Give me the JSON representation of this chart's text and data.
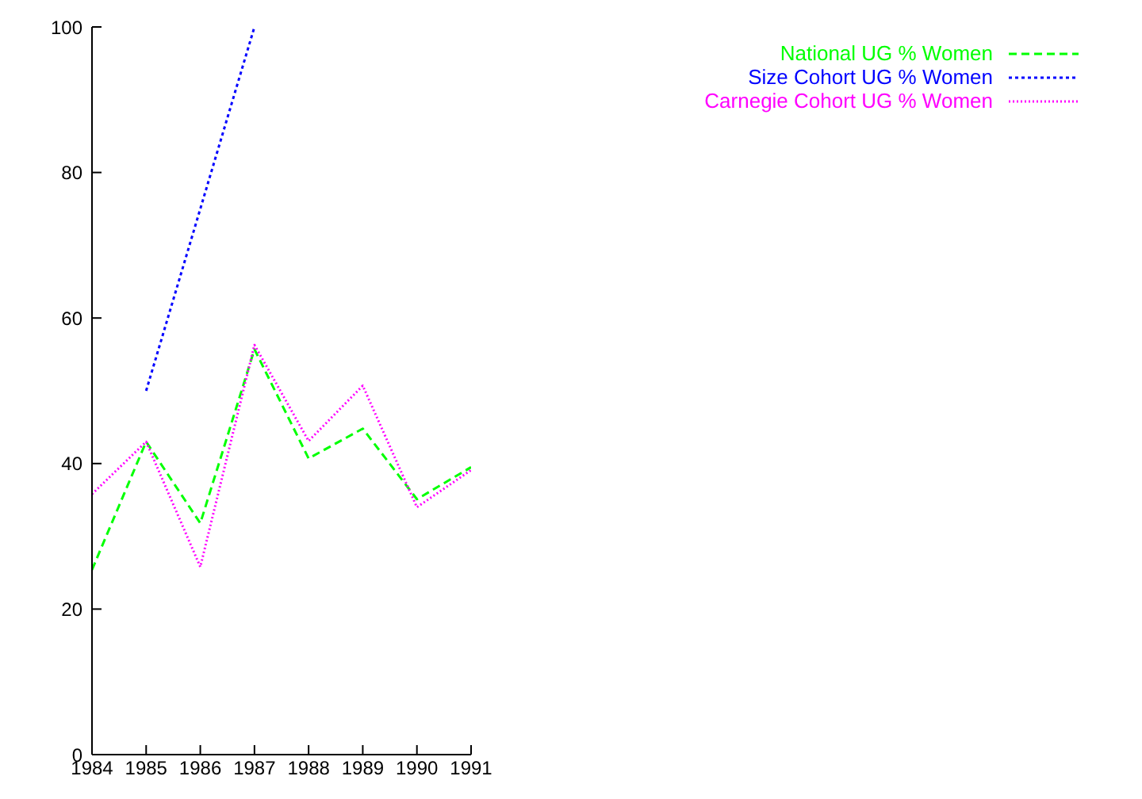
{
  "chart_data": {
    "type": "line",
    "x": [
      1984,
      1985,
      1986,
      1987,
      1988,
      1989,
      1990,
      1991
    ],
    "xlim": [
      1984,
      1991
    ],
    "xticks": [
      1984,
      1985,
      1986,
      1987,
      1988,
      1989,
      1990,
      1991
    ],
    "ylim": [
      0,
      100
    ],
    "yticks": [
      0,
      20,
      40,
      60,
      80,
      100
    ],
    "grid": false,
    "legend": "top right",
    "marker": "none",
    "series": [
      {
        "name": "National UG % Women",
        "color": "#00ff00",
        "line_style": "dashed",
        "values": [
          25.4,
          43.0,
          31.8,
          55.7,
          40.7,
          44.8,
          35.1,
          39.5
        ]
      },
      {
        "name": "Size Cohort UG % Women",
        "color": "#0000ff",
        "line_style": "dotted",
        "values": [
          null,
          50.0,
          75,
          100,
          null,
          null,
          null,
          null
        ]
      },
      {
        "name": "Carnegie Cohort UG % Women",
        "color": "#ff00ff",
        "line_style": "dotted",
        "values": [
          35.8,
          43.0,
          25.8,
          56.3,
          43.1,
          50.7,
          34.0,
          39.1
        ]
      }
    ]
  }
}
